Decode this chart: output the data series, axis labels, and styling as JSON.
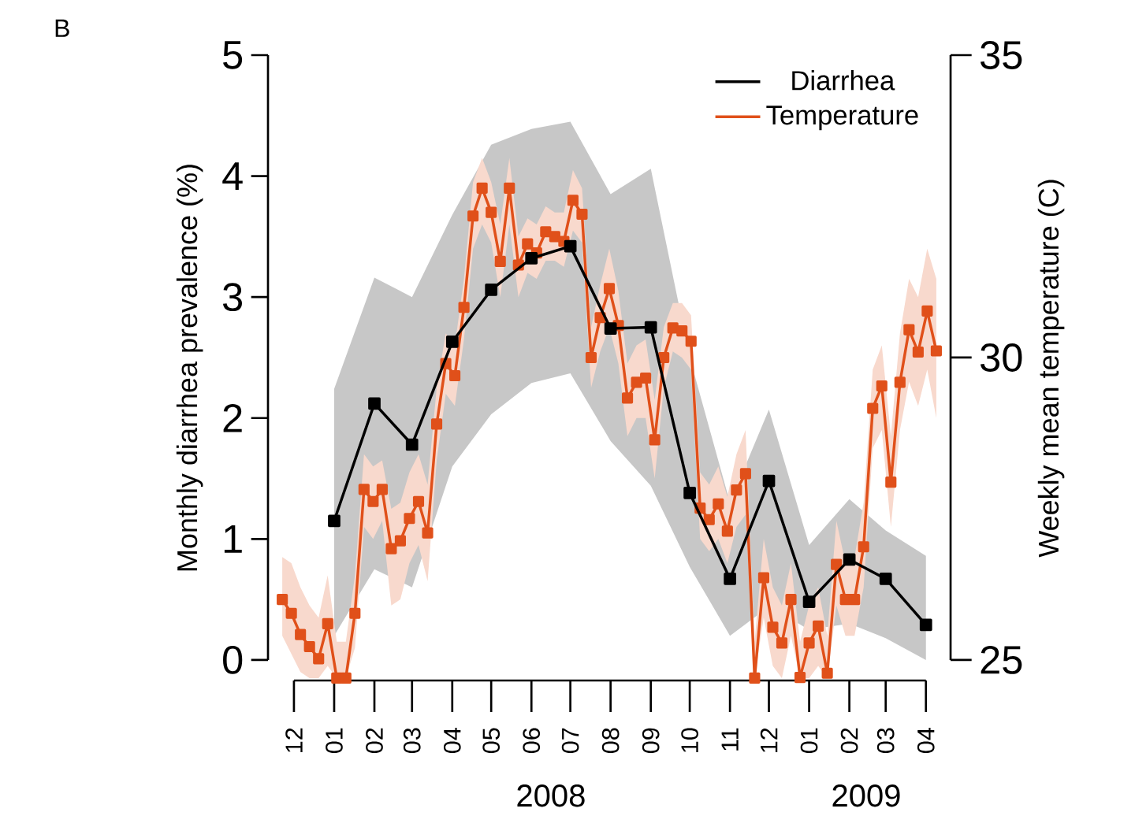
{
  "chart_data": {
    "type": "line",
    "ylabel": "Monthly diarrhea prevalence (%)",
    "y2label": "Weekly mean temperature (C)",
    "annotations": [
      "B",
      "2008",
      "2009"
    ],
    "xlim": [
      "2007-11-11",
      "2009-04-20"
    ],
    "xticks": [
      {
        "value": "2007-12",
        "label": "12"
      },
      {
        "value": "2008-01",
        "label": "01"
      },
      {
        "value": "2008-02",
        "label": "02"
      },
      {
        "value": "2008-03",
        "label": "03"
      },
      {
        "value": "2008-04",
        "label": "04"
      },
      {
        "value": "2008-05",
        "label": "05"
      },
      {
        "value": "2008-06",
        "label": "06"
      },
      {
        "value": "2008-07",
        "label": "07"
      },
      {
        "value": "2008-08",
        "label": "08"
      },
      {
        "value": "2008-09",
        "label": "09"
      },
      {
        "value": "2008-10",
        "label": "10"
      },
      {
        "value": "2008-11",
        "label": "11"
      },
      {
        "value": "2008-12",
        "label": "12"
      },
      {
        "value": "2009-01",
        "label": "01"
      },
      {
        "value": "2009-02",
        "label": "02"
      },
      {
        "value": "2009-03",
        "label": "03"
      },
      {
        "value": "2009-04",
        "label": "04"
      }
    ],
    "ylim": [
      -0.17,
      5
    ],
    "yticks": [
      0,
      1,
      2,
      3,
      4,
      5
    ],
    "y2lim": [
      24.66,
      35
    ],
    "y2ticks": [
      25,
      30,
      35
    ],
    "legend": "top right",
    "marker": "square",
    "line_style": "solid",
    "series": [
      {
        "name": "Diarrhea",
        "color": "#000000",
        "x": [
          "2008-01",
          "2008-02",
          "2008-03",
          "2008-04",
          "2008-05",
          "2008-06",
          "2008-07",
          "2008-08",
          "2008-09",
          "2008-10",
          "2008-11",
          "2008-12",
          "2009-01",
          "2009-02",
          "2009-03",
          "2009-04"
        ],
        "values": [
          1.15,
          2.12,
          1.78,
          2.63,
          3.06,
          3.32,
          3.42,
          2.74,
          2.75,
          1.38,
          0.67,
          1.48,
          0.48,
          0.83,
          0.67,
          0.29
        ],
        "lower": [
          0.2,
          0.75,
          0.6,
          1.6,
          2.03,
          2.29,
          2.37,
          1.81,
          1.44,
          0.77,
          0.2,
          0.44,
          0.25,
          0.3,
          0.18,
          0.0
        ],
        "upper": [
          2.24,
          3.16,
          3.0,
          3.68,
          4.26,
          4.39,
          4.45,
          3.85,
          4.06,
          2.5,
          1.3,
          2.07,
          0.95,
          1.33,
          1.07,
          0.86
        ]
      },
      {
        "name": "Temperature",
        "color": "#e0501a",
        "axis": "y2",
        "x": [
          "2007-11-22",
          "2007-11-29",
          "2007-12-06",
          "2007-12-13",
          "2007-12-20",
          "2007-12-27",
          "2008-01-03",
          "2008-01-10",
          "2008-01-17",
          "2008-01-24",
          "2008-01-31",
          "2008-02-07",
          "2008-02-14",
          "2008-02-21",
          "2008-02-28",
          "2008-03-06",
          "2008-03-13",
          "2008-03-20",
          "2008-03-27",
          "2008-04-03",
          "2008-04-10",
          "2008-04-17",
          "2008-04-24",
          "2008-05-01",
          "2008-05-08",
          "2008-05-15",
          "2008-05-22",
          "2008-05-29",
          "2008-06-05",
          "2008-06-12",
          "2008-06-19",
          "2008-06-26",
          "2008-07-03",
          "2008-07-10",
          "2008-07-17",
          "2008-07-24",
          "2008-07-31",
          "2008-08-07",
          "2008-08-14",
          "2008-08-21",
          "2008-08-28",
          "2008-09-04",
          "2008-09-11",
          "2008-09-18",
          "2008-09-25",
          "2008-10-02",
          "2008-10-09",
          "2008-10-16",
          "2008-10-23",
          "2008-10-30",
          "2008-11-06",
          "2008-11-13",
          "2008-11-20",
          "2008-11-27",
          "2008-12-04",
          "2008-12-11",
          "2008-12-18",
          "2008-12-25",
          "2009-01-01",
          "2009-01-08",
          "2009-01-15",
          "2009-01-22",
          "2009-01-29",
          "2009-02-05",
          "2009-02-12",
          "2009-02-19",
          "2009-02-26",
          "2009-03-05",
          "2009-03-12",
          "2009-03-19",
          "2009-03-26",
          "2009-04-02",
          "2009-04-09"
        ],
        "values": [
          26.0,
          25.77,
          25.42,
          25.22,
          25.02,
          25.6,
          24.7,
          24.7,
          25.77,
          27.82,
          27.62,
          27.82,
          26.84,
          26.97,
          27.34,
          27.62,
          27.1,
          28.9,
          29.9,
          29.7,
          30.83,
          32.34,
          32.8,
          32.4,
          31.59,
          32.8,
          31.53,
          31.88,
          31.73,
          32.08,
          32.0,
          31.92,
          32.6,
          32.37,
          30.0,
          30.66,
          31.14,
          30.53,
          29.33,
          29.59,
          29.66,
          28.64,
          30.0,
          30.49,
          30.44,
          30.27,
          27.51,
          27.32,
          27.58,
          27.13,
          27.81,
          28.08,
          24.7,
          26.36,
          25.54,
          25.28,
          26.0,
          24.71,
          25.28,
          25.56,
          24.78,
          26.58,
          26.0,
          26.0,
          26.87,
          29.16,
          29.53,
          27.94,
          29.59,
          30.46,
          30.09,
          30.77,
          30.11
        ],
        "lower": [
          25.4,
          25.1,
          24.8,
          24.7,
          24.7,
          24.9,
          24.7,
          24.7,
          25.2,
          27.2,
          27.0,
          27.3,
          25.9,
          26.0,
          26.6,
          26.9,
          26.3,
          28.3,
          29.4,
          29.2,
          30.3,
          31.8,
          32.2,
          31.9,
          31.0,
          32.2,
          31.0,
          31.4,
          31.3,
          31.6,
          31.6,
          31.5,
          32.1,
          31.9,
          29.5,
          30.1,
          30.5,
          29.9,
          28.7,
          29.0,
          29.0,
          28.0,
          29.5,
          30.1,
          30.0,
          29.8,
          27.0,
          26.8,
          27.0,
          26.6,
          27.2,
          27.4,
          24.7,
          25.7,
          24.9,
          24.7,
          25.4,
          24.7,
          24.7,
          24.9,
          24.7,
          25.9,
          25.4,
          25.4,
          26.2,
          28.5,
          28.8,
          27.2,
          28.8,
          29.6,
          29.2,
          29.8,
          29.0
        ],
        "upper": [
          26.7,
          26.6,
          26.2,
          25.9,
          25.7,
          26.4,
          25.3,
          25.3,
          26.4,
          28.4,
          28.2,
          28.3,
          27.5,
          27.6,
          28.1,
          28.4,
          27.9,
          29.5,
          30.4,
          30.2,
          31.3,
          32.9,
          33.3,
          32.9,
          32.2,
          33.3,
          32.0,
          32.3,
          32.2,
          32.5,
          32.4,
          32.4,
          33.1,
          32.8,
          30.5,
          31.2,
          31.8,
          31.1,
          29.9,
          30.2,
          30.3,
          29.3,
          30.5,
          30.9,
          30.9,
          30.7,
          28.1,
          27.9,
          28.2,
          27.7,
          28.4,
          28.8,
          25.3,
          27.0,
          26.2,
          25.9,
          26.6,
          25.3,
          25.9,
          26.2,
          25.4,
          27.3,
          26.6,
          26.7,
          27.6,
          29.8,
          30.2,
          28.7,
          30.4,
          31.3,
          31.0,
          31.8,
          31.3
        ]
      }
    ]
  }
}
